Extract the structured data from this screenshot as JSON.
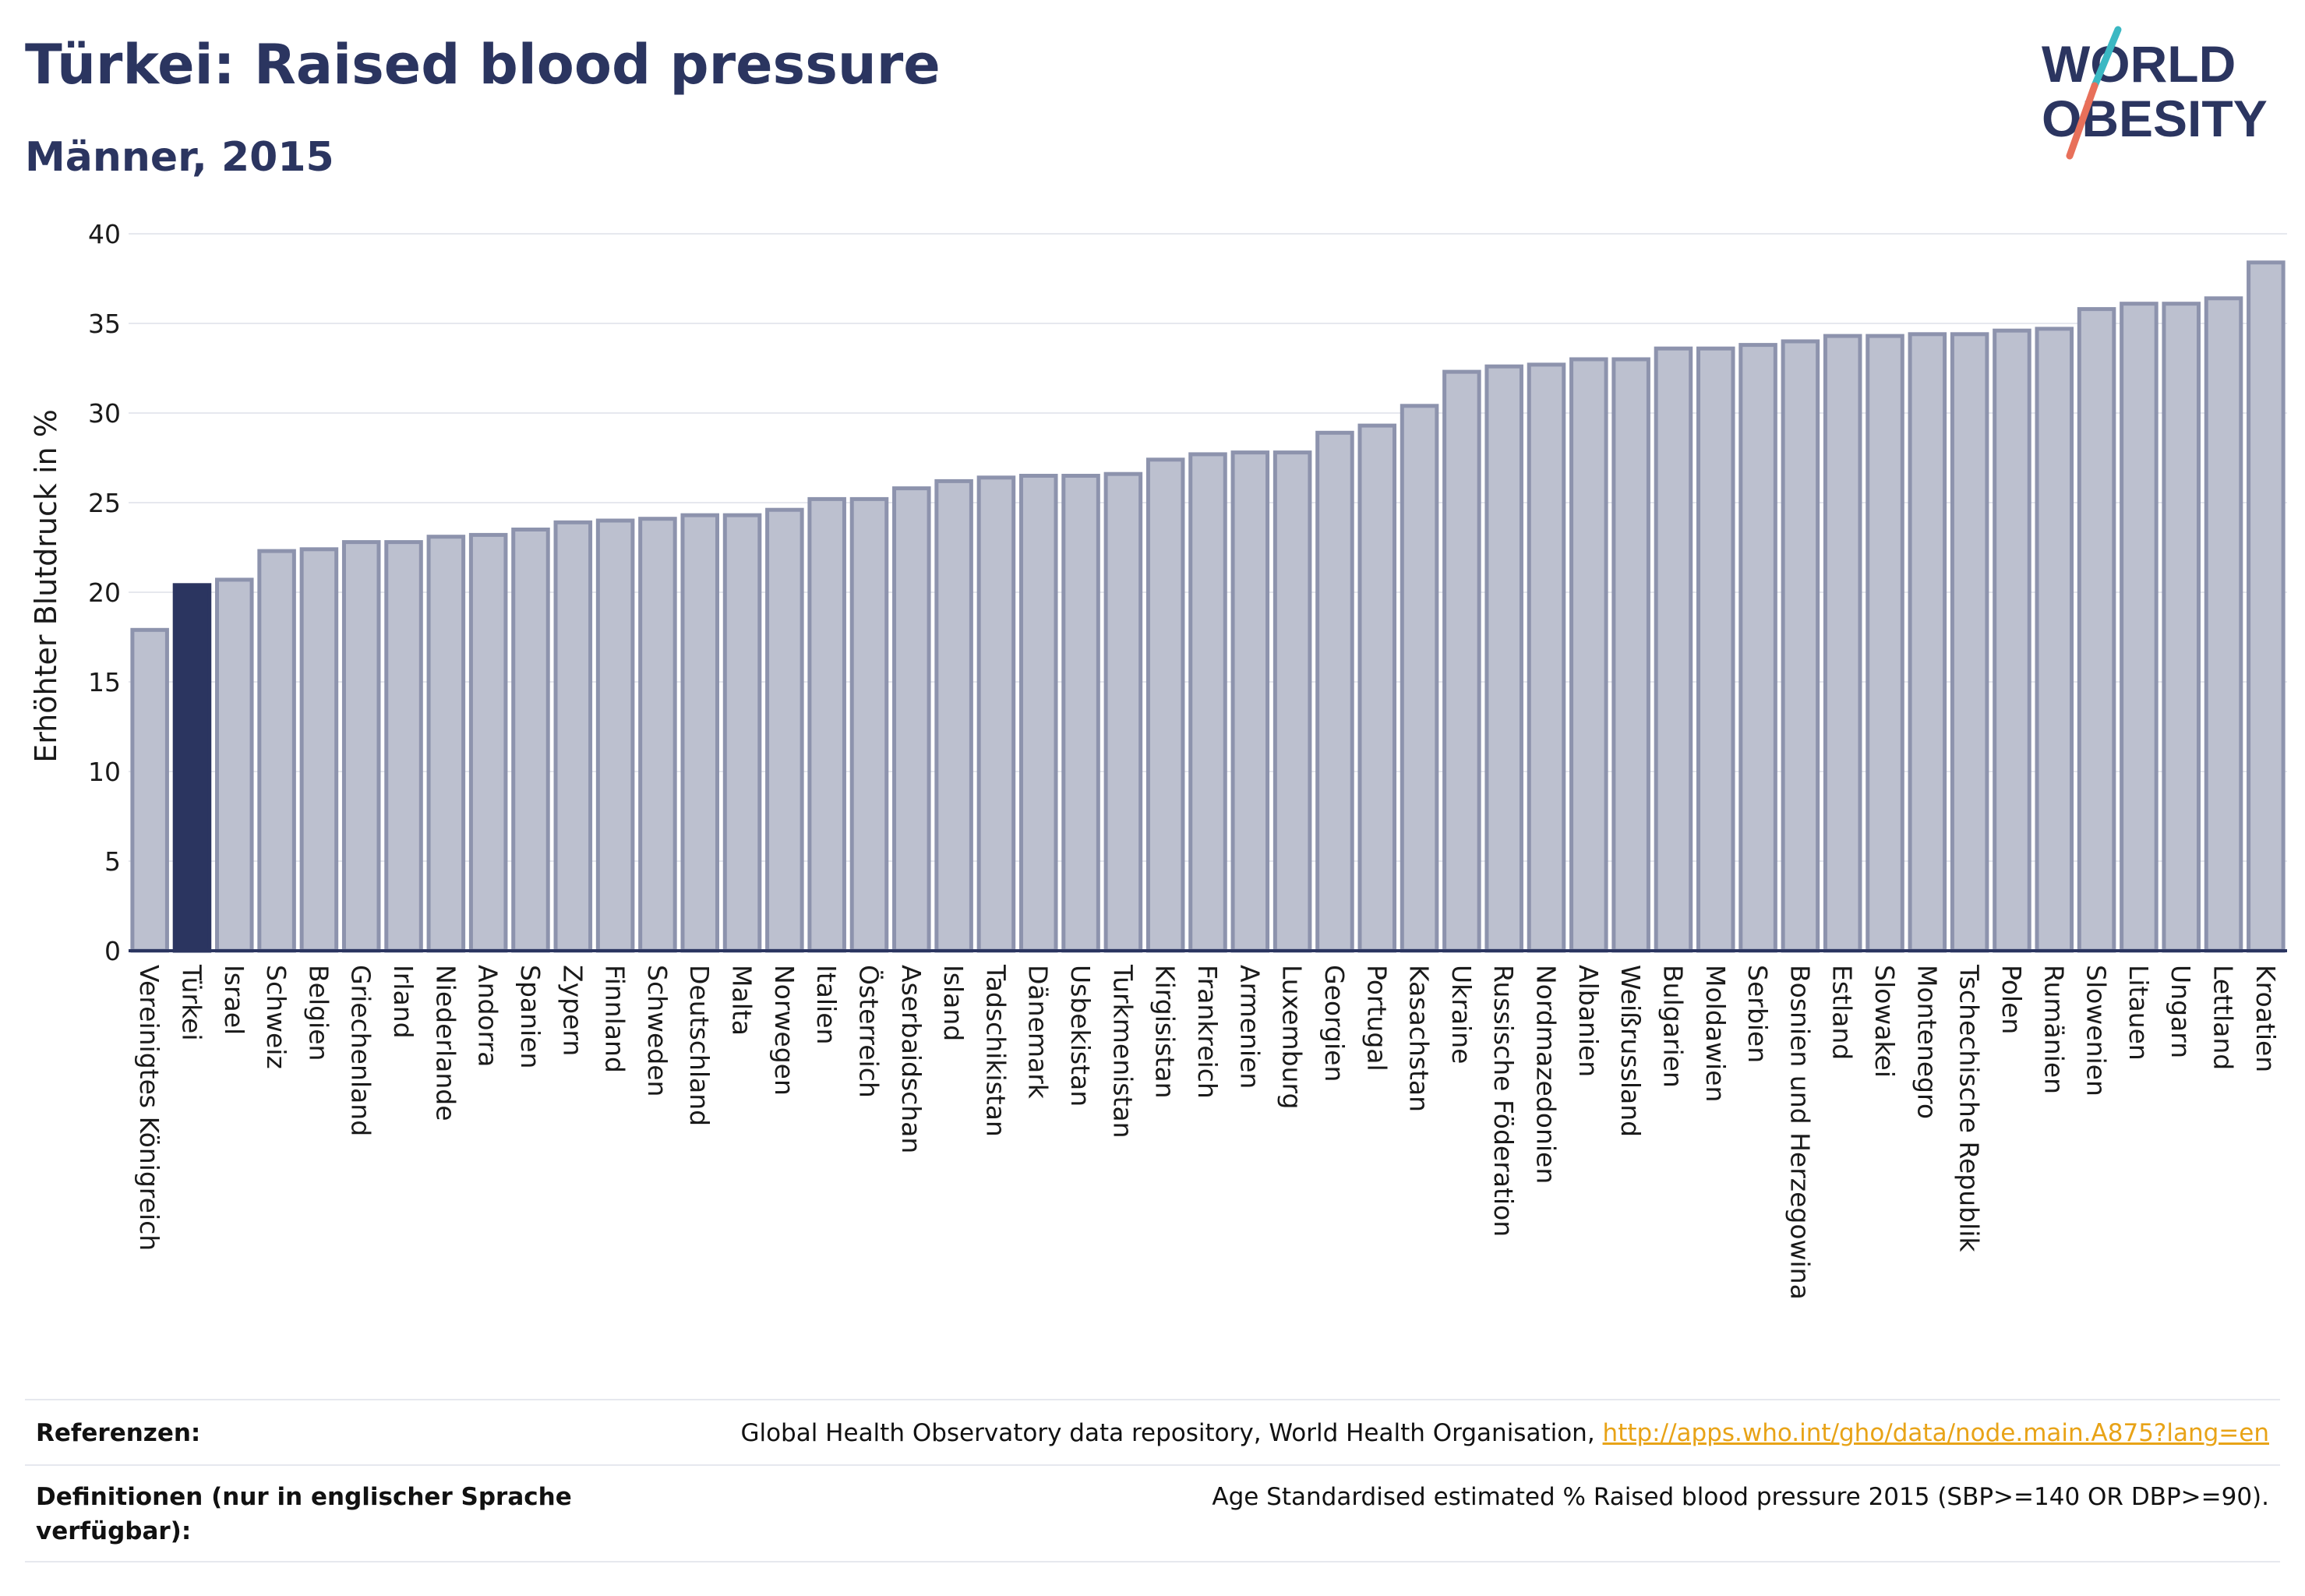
{
  "header": {
    "title": "Türkei: Raised blood pressure",
    "subtitle": "Männer, 2015"
  },
  "logo": {
    "line1": "WORLD",
    "line2": "OBESITY",
    "text_color": "#2b3560",
    "slash_teal": "#3bb8c3",
    "slash_red": "#e8705a"
  },
  "colors": {
    "bar_default": "#bcc0cf",
    "bar_default_stroke": "#8d93ad",
    "bar_highlight": "#2b3560",
    "axis": "#2b3560",
    "grid": "#e6e8ee"
  },
  "chart_data": {
    "type": "bar",
    "ylabel": "Erhöhter Blutdruck in %",
    "ylim": [
      0,
      40
    ],
    "yticks": [
      0,
      5,
      10,
      15,
      20,
      25,
      30,
      35,
      40
    ],
    "grid": true,
    "highlight": "Türkei",
    "categories": [
      "Vereinigtes Königreich",
      "Türkei",
      "Israel",
      "Schweiz",
      "Belgien",
      "Griechenland",
      "Irland",
      "Niederlande",
      "Andorra",
      "Spanien",
      "Zypern",
      "Finnland",
      "Schweden",
      "Deutschland",
      "Malta",
      "Norwegen",
      "Italien",
      "Österreich",
      "Aserbaidschan",
      "Island",
      "Tadschikistan",
      "Dänemark",
      "Usbekistan",
      "Turkmenistan",
      "Kirgisistan",
      "Frankreich",
      "Armenien",
      "Luxemburg",
      "Georgien",
      "Portugal",
      "Kasachstan",
      "Ukraine",
      "Russische Föderation",
      "Nordmazedonien",
      "Albanien",
      "Weißrussland",
      "Bulgarien",
      "Moldawien",
      "Serbien",
      "Bosnien und Herzegowina",
      "Estland",
      "Slowakei",
      "Montenegro",
      "Tschechische Republik",
      "Polen",
      "Rumänien",
      "Slowenien",
      "Litauen",
      "Ungarn",
      "Lettland",
      "Kroatien"
    ],
    "values": [
      17.9,
      20.4,
      20.7,
      22.3,
      22.4,
      22.8,
      22.8,
      23.1,
      23.2,
      23.5,
      23.9,
      24.0,
      24.1,
      24.3,
      24.3,
      24.6,
      25.2,
      25.2,
      25.8,
      26.2,
      26.4,
      26.5,
      26.5,
      26.6,
      27.4,
      27.7,
      27.8,
      27.8,
      28.9,
      29.3,
      30.4,
      32.3,
      32.6,
      32.7,
      33.0,
      33.0,
      33.6,
      33.6,
      33.8,
      34.0,
      34.3,
      34.3,
      34.4,
      34.4,
      34.6,
      34.7,
      35.8,
      36.1,
      36.1,
      36.4,
      38.4
    ]
  },
  "footer": {
    "references_label": "Referenzen:",
    "references_text": "Global Health Observatory data repository, World Health Organisation, ",
    "references_link": "http://apps.who.int/gho/data/node.main.A875?lang=en",
    "definitions_label": "Definitionen (nur in englischer Sprache verfügbar):",
    "definitions_text": "Age Standardised estimated % Raised blood pressure 2015 (SBP>=140 OR DBP>=90)."
  }
}
